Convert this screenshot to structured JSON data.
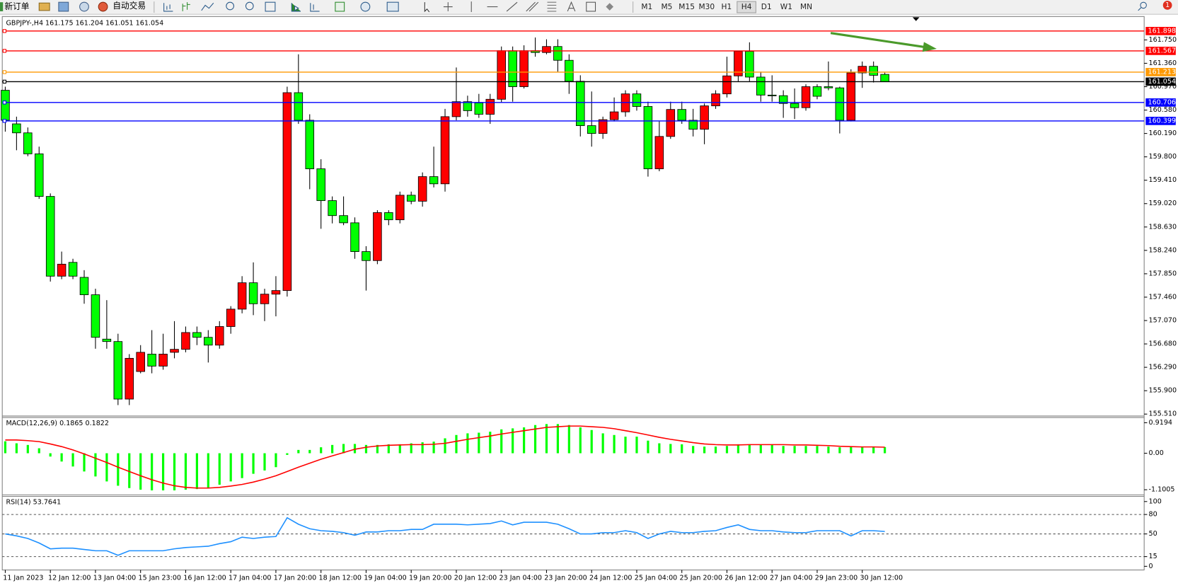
{
  "toolbar": {
    "new_order": "新订单",
    "auto_trading": "自动交易",
    "timeframes": [
      "M1",
      "M5",
      "M15",
      "M30",
      "H1",
      "H4",
      "D1",
      "W1",
      "MN"
    ],
    "active_timeframe": "H4",
    "notifications": "1"
  },
  "chart_data": [
    {
      "type": "candlestick",
      "title": "GBPJPY-,H4  161.175 161.204 161.051 161.054",
      "categories": [
        "11 Jan 2023",
        null,
        null,
        null,
        "12 Jan 12:00",
        null,
        null,
        null,
        "13 Jan 04:00",
        null,
        null,
        null,
        "15 Jan 23:00",
        null,
        null,
        null,
        "16 Jan 12:00",
        null,
        null,
        null,
        "17 Jan 04:00",
        null,
        null,
        null,
        "17 Jan 20:00",
        null,
        null,
        null,
        "18 Jan 12:00",
        null,
        null,
        null,
        "19 Jan 04:00",
        null,
        null,
        null,
        "19 Jan 20:00",
        null,
        null,
        null,
        "20 Jan 12:00",
        null,
        null,
        null,
        "23 Jan 04:00",
        null,
        null,
        null,
        "23 Jan 20:00",
        null,
        null,
        null,
        "24 Jan 12:00",
        null,
        null,
        null,
        "25 Jan 04:00",
        null,
        null,
        null,
        "25 Jan 20:00",
        null,
        null,
        null,
        "26 Jan 12:00",
        null,
        null,
        null,
        "27 Jan 04:00",
        null,
        null,
        null,
        "29 Jan 23:00",
        null,
        null,
        null,
        "30 Jan 12:00",
        null,
        null
      ],
      "open": [
        160.91,
        160.35,
        160.2,
        159.85,
        159.14,
        157.81,
        158.04,
        157.79,
        157.5,
        156.76,
        156.72,
        155.76,
        156.22,
        156.51,
        156.31,
        156.54,
        156.59,
        156.87,
        156.79,
        156.66,
        156.97,
        157.26,
        157.7,
        157.35,
        157.51,
        157.57,
        160.87,
        160.41,
        159.6,
        159.07,
        158.82,
        158.7,
        158.22,
        158.07,
        158.87,
        158.75,
        159.16,
        159.06,
        159.47,
        159.35,
        160.47,
        160.72,
        160.7,
        160.51,
        160.76,
        161.57,
        160.97,
        161.57,
        161.54,
        161.64,
        161.41,
        161.06,
        160.32,
        160.19,
        160.42,
        160.55,
        160.85,
        160.64,
        159.6,
        160.14,
        160.59,
        160.41,
        160.26,
        160.65,
        160.85,
        161.15,
        161.56,
        161.13,
        160.83,
        160.82,
        160.69,
        160.62,
        160.97,
        160.97,
        160.95,
        160.41,
        161.2,
        161.31,
        161.175
      ],
      "high": [
        160.97,
        160.47,
        160.29,
        159.97,
        159.19,
        158.22,
        158.1,
        157.91,
        157.6,
        157.41,
        156.85,
        156.51,
        156.66,
        156.91,
        156.85,
        157.06,
        156.97,
        156.97,
        156.91,
        157.06,
        157.31,
        157.81,
        158.04,
        157.6,
        157.81,
        160.97,
        161.51,
        160.51,
        159.76,
        159.14,
        159.14,
        158.79,
        158.31,
        158.91,
        158.91,
        159.22,
        159.22,
        159.54,
        159.97,
        160.6,
        161.29,
        160.82,
        160.85,
        160.85,
        161.64,
        161.64,
        161.66,
        161.79,
        161.76,
        161.76,
        161.51,
        161.16,
        160.89,
        160.47,
        160.79,
        160.91,
        160.91,
        160.72,
        160.39,
        160.72,
        160.72,
        160.6,
        160.69,
        160.91,
        161.47,
        161.56,
        161.71,
        161.22,
        161.16,
        160.91,
        160.94,
        161.01,
        161.01,
        161.39,
        160.97,
        161.26,
        161.39,
        161.39,
        161.204
      ],
      "low": [
        160.22,
        159.91,
        159.81,
        159.1,
        157.72,
        157.76,
        157.76,
        157.35,
        156.6,
        156.6,
        155.66,
        155.66,
        156.19,
        156.19,
        156.25,
        156.44,
        156.54,
        156.66,
        156.37,
        156.6,
        156.85,
        157.19,
        157.16,
        157.06,
        157.14,
        157.47,
        160.35,
        159.26,
        158.6,
        158.69,
        158.66,
        158.1,
        157.57,
        158.01,
        158.66,
        158.69,
        159.01,
        158.97,
        159.29,
        159.22,
        160.41,
        160.47,
        160.45,
        160.35,
        160.7,
        160.72,
        160.94,
        161.47,
        161.51,
        161.22,
        160.85,
        160.14,
        159.97,
        160.1,
        160.39,
        160.47,
        160.57,
        159.47,
        159.56,
        160.1,
        160.35,
        160.14,
        160.01,
        160.6,
        160.79,
        161.06,
        161.06,
        160.72,
        160.72,
        160.45,
        160.43,
        160.57,
        160.76,
        160.91,
        160.19,
        160.39,
        160.95,
        161.04,
        161.051
      ],
      "close": [
        160.41,
        160.2,
        159.85,
        159.14,
        157.81,
        158.01,
        157.81,
        157.5,
        156.79,
        156.72,
        155.76,
        156.44,
        156.54,
        156.31,
        156.51,
        156.59,
        156.87,
        156.79,
        156.66,
        156.97,
        157.26,
        157.7,
        157.35,
        157.51,
        157.57,
        160.87,
        160.41,
        159.6,
        159.07,
        158.82,
        158.7,
        158.22,
        158.07,
        158.87,
        158.75,
        159.16,
        159.06,
        159.47,
        159.35,
        160.47,
        160.72,
        160.57,
        160.51,
        160.76,
        161.57,
        160.97,
        161.57,
        161.54,
        161.64,
        161.41,
        161.06,
        160.32,
        160.19,
        160.42,
        160.55,
        160.85,
        160.64,
        159.6,
        160.14,
        160.59,
        160.41,
        160.26,
        160.65,
        160.85,
        161.15,
        161.56,
        161.13,
        160.83,
        160.82,
        160.69,
        160.62,
        160.97,
        160.81,
        160.95,
        160.41,
        161.2,
        161.31,
        161.16,
        161.054
      ],
      "up_color": "#ff0000",
      "down_color": "#00ff00",
      "ylim": [
        155.49,
        162.14
      ],
      "yticks": [
        {
          "value": 161.75,
          "label": "161.750"
        },
        {
          "value": 161.36,
          "label": "161.360"
        },
        {
          "value": 160.97,
          "label": "160.970"
        },
        {
          "value": 160.58,
          "label": "160.580"
        },
        {
          "value": 160.19,
          "label": "160.190"
        },
        {
          "value": 159.8,
          "label": "159.800"
        },
        {
          "value": 159.41,
          "label": "159.410"
        },
        {
          "value": 159.02,
          "label": "159.020"
        },
        {
          "value": 158.63,
          "label": "158.630"
        },
        {
          "value": 158.24,
          "label": "158.240"
        },
        {
          "value": 157.85,
          "label": "157.850"
        },
        {
          "value": 157.46,
          "label": "157.460"
        },
        {
          "value": 157.07,
          "label": "157.070"
        },
        {
          "value": 156.68,
          "label": "156.680"
        },
        {
          "value": 156.29,
          "label": "156.290"
        },
        {
          "value": 155.9,
          "label": "155.900"
        },
        {
          "value": 155.51,
          "label": "155.510"
        }
      ],
      "levels": [
        {
          "value": 161.898,
          "color": "#ff0000"
        },
        {
          "value": 161.567,
          "color": "#ff0000"
        },
        {
          "value": 161.213,
          "color": "#ff9900"
        },
        {
          "value": 161.054,
          "color": "#000000"
        },
        {
          "value": 160.706,
          "color": "#0000ff"
        },
        {
          "value": 160.399,
          "color": "#0000ff"
        }
      ]
    },
    {
      "type": "macd",
      "title": "MACD(12,26,9) 0.1865 0.1822",
      "series": [
        {
          "style": "bar",
          "color": "#00ff00",
          "values": [
            0.36,
            0.3,
            0.25,
            0.15,
            -0.1,
            -0.25,
            -0.4,
            -0.55,
            -0.7,
            -0.85,
            -0.98,
            -1.05,
            -1.1,
            -1.12,
            -1.12,
            -1.12,
            -1.1,
            -1.08,
            -1.05,
            -0.95,
            -0.85,
            -0.75,
            -0.62,
            -0.52,
            -0.42,
            -0.05,
            0.1,
            0.1,
            0.18,
            0.25,
            0.28,
            0.28,
            0.25,
            0.25,
            0.27,
            0.27,
            0.3,
            0.33,
            0.35,
            0.45,
            0.55,
            0.6,
            0.62,
            0.65,
            0.72,
            0.75,
            0.78,
            0.85,
            0.88,
            0.88,
            0.85,
            0.78,
            0.7,
            0.6,
            0.55,
            0.5,
            0.5,
            0.38,
            0.3,
            0.28,
            0.27,
            0.22,
            0.2,
            0.2,
            0.22,
            0.27,
            0.27,
            0.25,
            0.25,
            0.22,
            0.22,
            0.22,
            0.22,
            0.2,
            0.18,
            0.2,
            0.2,
            0.2,
            0.1865
          ]
        },
        {
          "style": "line",
          "color": "#ff0000",
          "values": [
            0.4,
            0.4,
            0.38,
            0.35,
            0.28,
            0.2,
            0.1,
            -0.02,
            -0.15,
            -0.28,
            -0.42,
            -0.55,
            -0.68,
            -0.8,
            -0.9,
            -0.98,
            -1.03,
            -1.05,
            -1.05,
            -1.03,
            -0.99,
            -0.94,
            -0.87,
            -0.78,
            -0.68,
            -0.55,
            -0.42,
            -0.3,
            -0.18,
            -0.08,
            0.02,
            0.12,
            0.18,
            0.22,
            0.24,
            0.25,
            0.26,
            0.26,
            0.27,
            0.3,
            0.36,
            0.42,
            0.47,
            0.52,
            0.58,
            0.63,
            0.68,
            0.73,
            0.78,
            0.8,
            0.82,
            0.82,
            0.8,
            0.78,
            0.74,
            0.68,
            0.62,
            0.55,
            0.48,
            0.42,
            0.37,
            0.32,
            0.28,
            0.26,
            0.25,
            0.25,
            0.26,
            0.26,
            0.26,
            0.26,
            0.25,
            0.25,
            0.24,
            0.23,
            0.21,
            0.2,
            0.19,
            0.19,
            0.1822
          ]
        }
      ],
      "ylim": [
        -1.233,
        1.054
      ],
      "yticks": [
        0.9194,
        {
          "value": 0,
          "label": "0.00"
        },
        -1.1005
      ]
    },
    {
      "type": "rsi",
      "title": "RSI(14) 53.7641",
      "series": [
        {
          "style": "line",
          "color": "#1e90ff",
          "values": [
            50,
            47,
            43,
            36,
            27,
            28,
            28,
            26,
            24,
            24,
            17,
            24,
            24,
            24,
            24,
            27,
            29,
            30,
            31,
            35,
            38,
            45,
            43,
            45,
            46,
            75,
            65,
            58,
            55,
            54,
            52,
            48,
            53,
            53,
            55,
            55,
            57,
            57,
            65,
            65,
            65,
            64,
            65,
            66,
            70,
            64,
            68,
            68,
            68,
            65,
            58,
            50,
            50,
            52,
            52,
            55,
            52,
            43,
            50,
            54,
            52,
            52,
            54,
            55,
            60,
            64,
            57,
            55,
            55,
            53,
            52,
            52,
            55,
            55,
            55,
            47,
            55,
            55,
            53.7641
          ]
        }
      ],
      "ylim": [
        -4.5,
        106.8
      ],
      "yticks": [
        100,
        80,
        50,
        15,
        0
      ]
    }
  ]
}
